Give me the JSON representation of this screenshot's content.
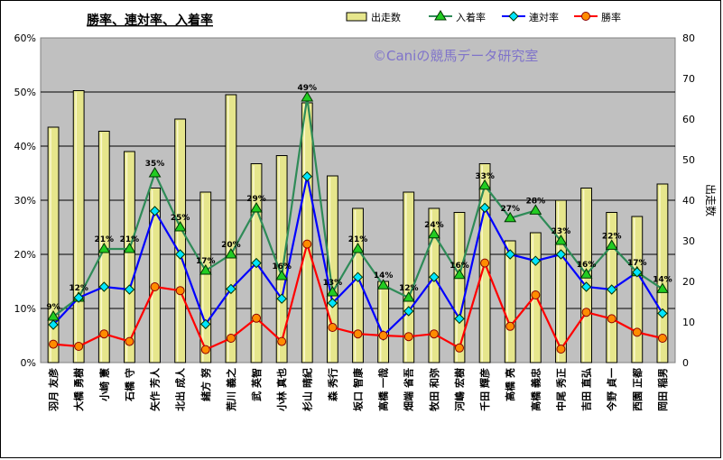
{
  "chart_data": {
    "type": "bar",
    "title": "勝率、連対率、入着率",
    "watermark": "©Caniの競馬データ研究室",
    "categories": [
      "羽月 友彦",
      "大橋 勇樹",
      "小崎 憲",
      "石橋 守",
      "矢作 芳人",
      "北出 成人",
      "緒方 努",
      "荒川 義之",
      "武 英智",
      "小林 真也",
      "杉山 晴紀",
      "森 秀行",
      "坂口 智康",
      "高橋 一哉",
      "畑端 省吾",
      "牧田 和弥",
      "河嶋 宏樹",
      "千田 輝彦",
      "高橋 亮",
      "高橋 義忠",
      "中尾 秀正",
      "吉田 直弘",
      "今野 貞一",
      "西園 正都",
      "岡田 稲男"
    ],
    "series": [
      {
        "name": "出走数",
        "kind": "bar",
        "axis": "right",
        "color": "#e6e68c",
        "values": [
          58,
          67,
          57,
          52,
          43,
          60,
          42,
          66,
          49,
          51,
          64,
          46,
          38,
          20,
          42,
          38,
          37,
          49,
          30,
          32,
          40,
          43,
          37,
          36,
          44
        ]
      },
      {
        "name": "入着率",
        "kind": "line",
        "axis": "left",
        "color": "#2e8b57",
        "marker": "triangle",
        "marker_color": "#22cc22",
        "values": [
          8.5,
          12,
          21,
          21,
          35,
          25,
          17,
          20,
          28.5,
          16,
          49,
          13,
          21,
          14.3,
          12,
          23.7,
          16.2,
          32.7,
          26.7,
          28.1,
          22.5,
          16.3,
          21.6,
          16.7,
          13.6
        ]
      },
      {
        "name": "連対率",
        "kind": "line",
        "axis": "left",
        "color": "#0000ff",
        "marker": "diamond",
        "marker_color": "#00e5ff",
        "values": [
          7,
          12,
          14,
          13.5,
          28,
          20,
          7.1,
          13.6,
          18.4,
          11.8,
          34.4,
          11,
          15.8,
          5,
          9.5,
          15.8,
          8.1,
          28.6,
          20,
          18.8,
          20,
          14,
          13.5,
          16.7,
          9.1
        ]
      },
      {
        "name": "勝率",
        "kind": "line",
        "axis": "left",
        "color": "#ff0000",
        "marker": "circle",
        "marker_color": "#ff8c00",
        "values": [
          3.4,
          3,
          5.3,
          3.9,
          14,
          13.3,
          2.4,
          4.5,
          8.2,
          3.9,
          21.9,
          6.5,
          5.3,
          5,
          4.8,
          5.3,
          2.7,
          18.4,
          6.7,
          12.5,
          2.5,
          9.3,
          8.1,
          5.6,
          4.5
        ]
      }
    ],
    "data_labels": [
      "9%",
      "12%",
      "21%",
      "21%",
      "35%",
      "25%",
      "17%",
      "20%",
      "29%",
      "16%",
      "49%",
      "13%",
      "21%",
      "14%",
      "12%",
      "24%",
      "16%",
      "33%",
      "27%",
      "28%",
      "23%",
      "16%",
      "22%",
      "17%",
      "14%"
    ],
    "y_left": {
      "min": 0,
      "max": 60,
      "step": 10,
      "unit": "%",
      "ticks": [
        "0%",
        "10%",
        "20%",
        "30%",
        "40%",
        "50%",
        "60%"
      ]
    },
    "y_right": {
      "min": 0,
      "max": 80,
      "step": 10,
      "label": "出走数",
      "ticks": [
        "0",
        "10",
        "20",
        "30",
        "40",
        "50",
        "60",
        "70",
        "80"
      ]
    },
    "legend": [
      "出走数",
      "入着率",
      "連対率",
      "勝率"
    ],
    "legend_position": "top-right",
    "grid": true,
    "plot_background": "#c0c0c0"
  }
}
